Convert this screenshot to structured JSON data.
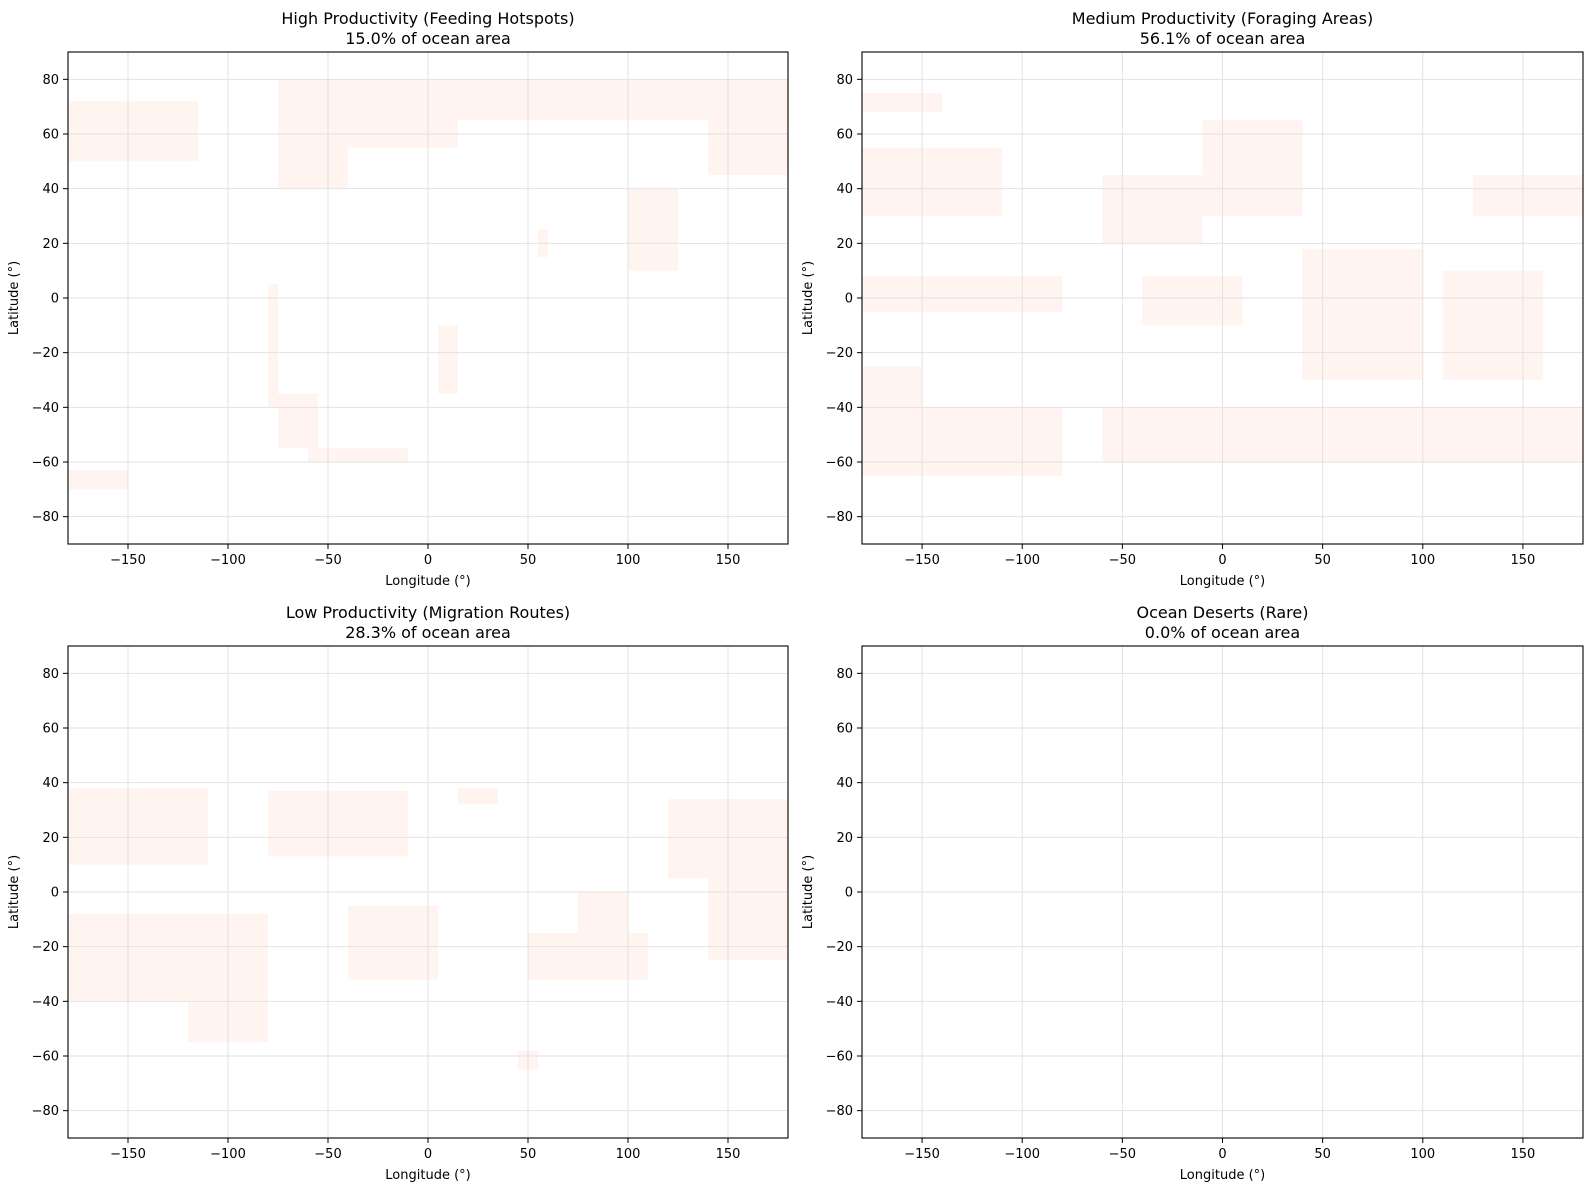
{
  "chart_data": [
    {
      "type": "heatmap",
      "title": "High Productivity (Feeding Hotspots)",
      "subtitle": "15.0% of ocean area",
      "ocean_area_percent": 15.0,
      "xlabel": "Longitude (°)",
      "ylabel": "Latitude (°)",
      "xlim": [
        -180,
        180
      ],
      "ylim": [
        -90,
        90
      ],
      "xticks": [
        -150,
        -100,
        -50,
        0,
        50,
        100,
        150
      ],
      "yticks": [
        -80,
        -60,
        -40,
        -20,
        0,
        20,
        40,
        60,
        80
      ],
      "grid": true,
      "fill_color": "#fff4ef",
      "regions": [
        {
          "lon": [
            -180,
            -115
          ],
          "lat": [
            50,
            72
          ]
        },
        {
          "lon": [
            -75,
            -40
          ],
          "lat": [
            40,
            80
          ]
        },
        {
          "lon": [
            -45,
            15
          ],
          "lat": [
            55,
            80
          ]
        },
        {
          "lon": [
            15,
            180
          ],
          "lat": [
            65,
            80
          ]
        },
        {
          "lon": [
            140,
            180
          ],
          "lat": [
            45,
            65
          ]
        },
        {
          "lon": [
            -75,
            -55
          ],
          "lat": [
            -55,
            -35
          ]
        },
        {
          "lon": [
            -80,
            -75
          ],
          "lat": [
            -40,
            5
          ]
        },
        {
          "lon": [
            5,
            15
          ],
          "lat": [
            -35,
            -10
          ]
        },
        {
          "lon": [
            55,
            60
          ],
          "lat": [
            15,
            25
          ]
        },
        {
          "lon": [
            100,
            125
          ],
          "lat": [
            10,
            40
          ]
        },
        {
          "lon": [
            -180,
            -150
          ],
          "lat": [
            -70,
            -63
          ]
        },
        {
          "lon": [
            -60,
            -10
          ],
          "lat": [
            -60,
            -55
          ]
        }
      ]
    },
    {
      "type": "heatmap",
      "title": "Medium Productivity (Foraging Areas)",
      "subtitle": "56.1% of ocean area",
      "ocean_area_percent": 56.1,
      "xlabel": "Longitude (°)",
      "ylabel": "Latitude (°)",
      "xlim": [
        -180,
        180
      ],
      "ylim": [
        -90,
        90
      ],
      "xticks": [
        -150,
        -100,
        -50,
        0,
        50,
        100,
        150
      ],
      "yticks": [
        -80,
        -60,
        -40,
        -20,
        0,
        20,
        40,
        60,
        80
      ],
      "grid": true,
      "fill_color": "#fff4ef",
      "regions": [
        {
          "lon": [
            -180,
            -110
          ],
          "lat": [
            30,
            55
          ]
        },
        {
          "lon": [
            -180,
            -140
          ],
          "lat": [
            68,
            75
          ]
        },
        {
          "lon": [
            -60,
            -10
          ],
          "lat": [
            20,
            45
          ]
        },
        {
          "lon": [
            -10,
            40
          ],
          "lat": [
            30,
            65
          ]
        },
        {
          "lon": [
            125,
            180
          ],
          "lat": [
            30,
            45
          ]
        },
        {
          "lon": [
            -180,
            -80
          ],
          "lat": [
            -5,
            8
          ]
        },
        {
          "lon": [
            -40,
            10
          ],
          "lat": [
            -10,
            8
          ]
        },
        {
          "lon": [
            40,
            100
          ],
          "lat": [
            -30,
            18
          ]
        },
        {
          "lon": [
            110,
            160
          ],
          "lat": [
            -30,
            10
          ]
        },
        {
          "lon": [
            -180,
            -80
          ],
          "lat": [
            -65,
            -40
          ]
        },
        {
          "lon": [
            -60,
            180
          ],
          "lat": [
            -60,
            -40
          ]
        },
        {
          "lon": [
            -180,
            -150
          ],
          "lat": [
            -40,
            -25
          ]
        }
      ]
    },
    {
      "type": "heatmap",
      "title": "Low Productivity (Migration Routes)",
      "subtitle": "28.3% of ocean area",
      "ocean_area_percent": 28.3,
      "xlabel": "Longitude (°)",
      "ylabel": "Latitude (°)",
      "xlim": [
        -180,
        180
      ],
      "ylim": [
        -90,
        90
      ],
      "xticks": [
        -150,
        -100,
        -50,
        0,
        50,
        100,
        150
      ],
      "yticks": [
        -80,
        -60,
        -40,
        -20,
        0,
        20,
        40,
        60,
        80
      ],
      "grid": true,
      "fill_color": "#fff4ef",
      "regions": [
        {
          "lon": [
            -180,
            -110
          ],
          "lat": [
            10,
            38
          ]
        },
        {
          "lon": [
            -80,
            -10
          ],
          "lat": [
            13,
            37
          ]
        },
        {
          "lon": [
            15,
            35
          ],
          "lat": [
            32,
            38
          ]
        },
        {
          "lon": [
            120,
            180
          ],
          "lat": [
            5,
            34
          ]
        },
        {
          "lon": [
            140,
            180
          ],
          "lat": [
            -25,
            5
          ]
        },
        {
          "lon": [
            -180,
            -80
          ],
          "lat": [
            -40,
            -8
          ]
        },
        {
          "lon": [
            -120,
            -80
          ],
          "lat": [
            -55,
            -40
          ]
        },
        {
          "lon": [
            -40,
            5
          ],
          "lat": [
            -32,
            -5
          ]
        },
        {
          "lon": [
            50,
            110
          ],
          "lat": [
            -32,
            -15
          ]
        },
        {
          "lon": [
            75,
            100
          ],
          "lat": [
            -15,
            0
          ]
        },
        {
          "lon": [
            45,
            55
          ],
          "lat": [
            -65,
            -58
          ]
        }
      ]
    },
    {
      "type": "heatmap",
      "title": "Ocean Deserts (Rare)",
      "subtitle": "0.0% of ocean area",
      "ocean_area_percent": 0.0,
      "xlabel": "Longitude (°)",
      "ylabel": "Latitude (°)",
      "xlim": [
        -180,
        180
      ],
      "ylim": [
        -90,
        90
      ],
      "xticks": [
        -150,
        -100,
        -50,
        0,
        50,
        100,
        150
      ],
      "yticks": [
        -80,
        -60,
        -40,
        -20,
        0,
        20,
        40,
        60,
        80
      ],
      "grid": true,
      "fill_color": "#fff4ef",
      "regions": []
    }
  ]
}
